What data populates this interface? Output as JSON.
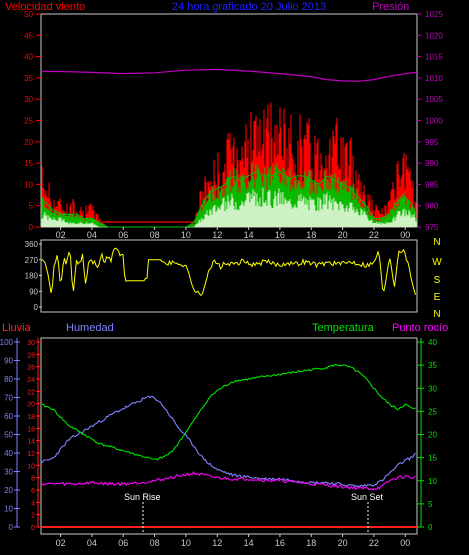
{
  "header": {
    "wind_label": "Velocidad viento",
    "title": "24 hora graficado  20 Julio 2013",
    "pressure_label": "Presión"
  },
  "lower_header": {
    "rain_label": "Lluvia",
    "humidity_label": "Humedad",
    "temperature_label": "Temperatura",
    "dewpoint_label": "Punto rocío"
  },
  "annotations": {
    "sun_rise": "Sun Rise",
    "sun_set": "Sun Set"
  },
  "colors": {
    "background": "#000000",
    "frame": "#c8c8c8",
    "gust": "#ff0000",
    "wind_avg": "#00c000",
    "wind_light": "#d8ffd8",
    "pressure": "#c000c0",
    "title": "#2020ff",
    "direction": "#ffff00",
    "rain": "#ff2020",
    "humidity": "#8080ff",
    "temperature": "#00e000",
    "dewpoint": "#ff00ff",
    "sun": "#ffffff"
  },
  "chart_data": [
    {
      "type": "area",
      "name": "wind",
      "x_ticks": [
        "02",
        "04",
        "06",
        "08",
        "10",
        "12",
        "14",
        "16",
        "18",
        "20",
        "22",
        "00"
      ],
      "left_ticks": [
        "0",
        "5",
        "10",
        "15",
        "20",
        "25",
        "30",
        "35",
        "40",
        "45",
        "50"
      ],
      "right_ticks": [
        "975",
        "980",
        "985",
        "990",
        "995",
        "1000",
        "1005",
        "1010",
        "1015",
        "1020",
        "1025"
      ],
      "x_range_hours": [
        0.75,
        24.75
      ],
      "ylim": [
        0,
        50
      ],
      "y2lim": [
        975,
        1025
      ],
      "series": [
        {
          "role": "gust",
          "x": [
            0.75,
            1.0,
            1.5,
            2.0,
            2.5,
            3.0,
            3.5,
            4.0,
            4.5,
            5.0,
            6.0,
            7.0,
            8.0,
            9.0,
            10.0,
            10.5,
            11.0,
            11.5,
            12.0,
            12.5,
            13.0,
            13.5,
            14.0,
            14.5,
            15.0,
            15.5,
            16.0,
            16.5,
            17.0,
            17.5,
            18.0,
            18.5,
            19.0,
            19.5,
            20.0,
            20.5,
            21.0,
            21.5,
            22.0,
            22.5,
            23.0,
            23.5,
            24.0,
            24.5,
            24.75
          ],
          "values": [
            13,
            12,
            7,
            6,
            5,
            6,
            4,
            5,
            2,
            0,
            0,
            0,
            0,
            0,
            0,
            1,
            9,
            13,
            15,
            17,
            22,
            24,
            22,
            26,
            24,
            25,
            26,
            22,
            24,
            23,
            22,
            20,
            24,
            22,
            21,
            18,
            14,
            9,
            5,
            4,
            6,
            13,
            15,
            10,
            4
          ]
        },
        {
          "role": "average",
          "x": [
            0.75,
            1.0,
            1.5,
            2.0,
            2.5,
            3.0,
            3.5,
            4.0,
            4.5,
            5.0,
            6.0,
            7.0,
            8.0,
            9.0,
            10.0,
            10.5,
            11.0,
            11.5,
            12.0,
            12.5,
            13.0,
            13.5,
            14.0,
            14.5,
            15.0,
            15.5,
            16.0,
            16.5,
            17.0,
            17.5,
            18.0,
            18.5,
            19.0,
            19.5,
            20.0,
            20.5,
            21.0,
            21.5,
            22.0,
            22.5,
            23.0,
            23.5,
            24.0,
            24.5,
            24.75
          ],
          "values": [
            6,
            6,
            4,
            3,
            3,
            3,
            2,
            2,
            1,
            0,
            0,
            0,
            0,
            0,
            0,
            1,
            5,
            8,
            9,
            10,
            12,
            11,
            12,
            13,
            12,
            12,
            13,
            11,
            12,
            12,
            11,
            10,
            12,
            11,
            10,
            9,
            7,
            5,
            2,
            2,
            3,
            6,
            7,
            5,
            2
          ]
        },
        {
          "role": "light",
          "x": [
            0.75,
            1.0,
            1.5,
            2.0,
            2.5,
            3.0,
            3.5,
            4.0,
            4.5,
            5.0,
            6.0,
            7.0,
            8.0,
            9.0,
            10.0,
            10.5,
            11.0,
            11.5,
            12.0,
            12.5,
            13.0,
            13.5,
            14.0,
            14.5,
            15.0,
            15.5,
            16.0,
            16.5,
            17.0,
            17.5,
            18.0,
            18.5,
            19.0,
            19.5,
            20.0,
            20.5,
            21.0,
            21.5,
            22.0,
            22.5,
            23.0,
            23.5,
            24.0,
            24.5,
            24.75
          ],
          "values": [
            3,
            3,
            2,
            2,
            1,
            1,
            1,
            1,
            0,
            0,
            0,
            0,
            0,
            0,
            0,
            0,
            2,
            4,
            5,
            6,
            7,
            6,
            8,
            7,
            8,
            7,
            8,
            6,
            7,
            7,
            6,
            6,
            7,
            6,
            6,
            5,
            4,
            3,
            1,
            1,
            1,
            3,
            4,
            3,
            1
          ]
        },
        {
          "role": "pressure",
          "x": [
            0.75,
            2,
            4,
            6,
            8,
            10,
            12,
            14,
            16,
            18,
            19,
            20,
            21,
            22,
            23,
            24,
            24.75
          ],
          "values": [
            1011.5,
            1011.5,
            1011.3,
            1011.0,
            1011.2,
            1011.8,
            1012.0,
            1011.6,
            1011.0,
            1010.3,
            1009.6,
            1009.3,
            1009.2,
            1009.6,
            1010.4,
            1011.0,
            1011.3
          ]
        }
      ]
    },
    {
      "type": "line",
      "name": "direction",
      "y_ticks": [
        "360",
        "270",
        "180",
        "90",
        "0"
      ],
      "compass": [
        "N",
        "W",
        "S",
        "E",
        "N"
      ],
      "ylim": [
        0,
        360
      ],
      "x": [
        0.75,
        1.0,
        1.2,
        1.4,
        1.6,
        1.8,
        2.0,
        2.2,
        2.4,
        2.6,
        2.8,
        3.0,
        3.2,
        3.4,
        3.6,
        3.8,
        4.0,
        4.2,
        4.4,
        4.6,
        4.8,
        5.0,
        5.2,
        5.4,
        5.6,
        5.8,
        6.0,
        6.1,
        7.5,
        7.6,
        8.5,
        8.6,
        9.5,
        10.0,
        10.3,
        10.6,
        11.0,
        11.4,
        11.8,
        12.2,
        12.6,
        13.0,
        13.5,
        14.0,
        14.5,
        15.0,
        15.5,
        16.0,
        16.5,
        17.0,
        17.5,
        18.0,
        18.5,
        19.0,
        19.5,
        20.0,
        20.5,
        21.0,
        21.5,
        22.0,
        22.3,
        22.6,
        23.0,
        23.3,
        23.6,
        24.0,
        24.3,
        24.6,
        24.75
      ],
      "values": [
        290,
        270,
        200,
        60,
        240,
        300,
        120,
        280,
        250,
        330,
        60,
        270,
        240,
        300,
        120,
        270,
        260,
        250,
        230,
        300,
        250,
        290,
        260,
        340,
        330,
        300,
        290,
        150,
        150,
        270,
        270,
        250,
        250,
        240,
        150,
        90,
        60,
        200,
        260,
        230,
        250,
        240,
        260,
        250,
        240,
        260,
        250,
        240,
        255,
        245,
        260,
        250,
        240,
        255,
        250,
        245,
        260,
        250,
        240,
        250,
        330,
        60,
        300,
        120,
        330,
        310,
        200,
        90,
        60
      ]
    },
    {
      "type": "line",
      "name": "climate",
      "rain_ticks": [
        "0",
        "10",
        "20",
        "30",
        "40",
        "50",
        "60",
        "70",
        "80",
        "90",
        "100"
      ],
      "humidity_ticks": [
        "0",
        "2",
        "4",
        "6",
        "8",
        "10",
        "12",
        "14",
        "16",
        "18",
        "20",
        "22",
        "24",
        "26",
        "28",
        "30"
      ],
      "temp_ticks": [
        "0",
        "5",
        "10",
        "15",
        "20",
        "25",
        "30",
        "35",
        "40"
      ],
      "rain_ylim": [
        0,
        100
      ],
      "dewpoint_ylim": [
        0,
        30
      ],
      "temp_ylim": [
        0,
        40
      ],
      "series": [
        {
          "role": "humidity",
          "x": [
            0.75,
            1.5,
            2.5,
            3.5,
            4.5,
            5.5,
            6.5,
            7.0,
            7.5,
            8.0,
            8.5,
            9.0,
            9.5,
            10.0,
            10.5,
            11.0,
            11.5,
            12.0,
            13.0,
            14.0,
            15.0,
            16.0,
            17.0,
            18.0,
            19.0,
            20.0,
            21.0,
            22.0,
            22.5,
            23.0,
            23.5,
            24.0,
            24.5,
            24.75
          ],
          "values": [
            35,
            37,
            47,
            52,
            57,
            62,
            66,
            68,
            70,
            70,
            66,
            60,
            54,
            49,
            44,
            38,
            34,
            31,
            28,
            27,
            26,
            26,
            25,
            24,
            24,
            23,
            22,
            23,
            25,
            29,
            33,
            36,
            38,
            40
          ]
        },
        {
          "role": "temperature",
          "x": [
            0.75,
            1.5,
            2.5,
            3.5,
            4.5,
            5.5,
            6.5,
            7.5,
            8.0,
            8.5,
            9.0,
            9.5,
            10.0,
            10.5,
            11.0,
            11.5,
            12.0,
            12.5,
            13.0,
            14.0,
            15.0,
            16.0,
            17.0,
            18.0,
            19.0,
            19.5,
            20.0,
            20.5,
            21.0,
            21.5,
            22.0,
            22.5,
            23.0,
            23.5,
            24.0,
            24.5,
            24.75
          ],
          "values": [
            26.5,
            25.5,
            22.0,
            20.0,
            18.0,
            17.0,
            16.0,
            15.0,
            14.5,
            15.0,
            16.0,
            18.0,
            20.5,
            23.0,
            25.5,
            28.0,
            29.5,
            30.5,
            31.5,
            32.0,
            32.5,
            33.0,
            33.5,
            34.0,
            34.5,
            35.0,
            35.0,
            34.5,
            33.5,
            32.0,
            30.0,
            28.0,
            26.5,
            25.5,
            26.5,
            25.5,
            25.5
          ]
        },
        {
          "role": "dewpoint",
          "x": [
            0.75,
            2,
            3,
            4,
            5,
            6,
            7,
            8,
            9,
            10,
            10.5,
            11,
            11.5,
            12,
            13,
            14,
            15,
            16,
            17,
            18,
            19,
            20,
            21,
            22,
            22.5,
            23,
            23.5,
            24,
            24.5,
            24.75
          ],
          "values": [
            7.0,
            7.0,
            7.0,
            7.2,
            7.0,
            7.0,
            7.2,
            7.5,
            8.0,
            8.5,
            8.7,
            8.5,
            8.2,
            8.0,
            7.8,
            7.8,
            7.6,
            7.5,
            7.3,
            7.0,
            6.8,
            6.5,
            6.3,
            6.2,
            6.5,
            7.5,
            8.0,
            8.2,
            8.0,
            8.0
          ]
        },
        {
          "role": "rain",
          "x": [
            0.75,
            24.75
          ],
          "values": [
            0,
            0
          ]
        }
      ]
    }
  ]
}
